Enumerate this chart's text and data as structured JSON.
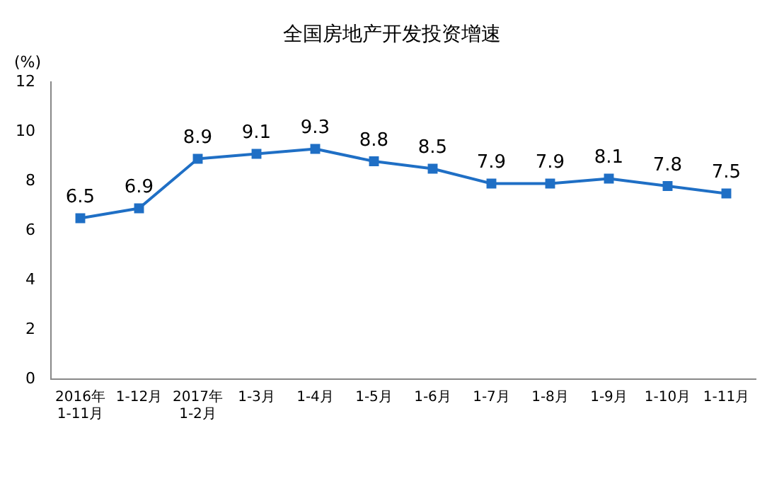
{
  "chart_data": {
    "type": "line",
    "title": "全国房地产开发投资增速",
    "ylabel": "(%)",
    "categories": [
      "2016年\n1-11月",
      "1-12月",
      "2017年\n1-2月",
      "1-3月",
      "1-4月",
      "1-5月",
      "1-6月",
      "1-7月",
      "1-8月",
      "1-9月",
      "1-10月",
      "1-11月"
    ],
    "series": [
      {
        "color": "#1f6fc5",
        "values": [
          6.5,
          6.9,
          8.9,
          9.1,
          9.3,
          8.8,
          8.5,
          7.9,
          7.9,
          8.1,
          7.8,
          7.5
        ]
      }
    ],
    "ylim": [
      0,
      12
    ],
    "yticks": [
      0,
      2,
      4,
      6,
      8,
      10,
      12
    ],
    "grid": false,
    "legend": false,
    "marker": "square",
    "line_style": "solid",
    "data_labels": true
  }
}
